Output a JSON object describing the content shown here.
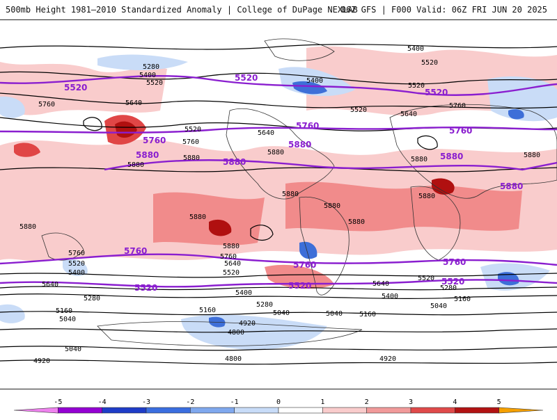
{
  "header": {
    "left_title": "500mb Height 1981–2010 Standardized Anomaly | College of DuPage NEXLAB",
    "right_title": "06Z GFS | F000 Valid: 06Z FRI JUN 20 2025"
  },
  "map": {
    "black_contour_labels": [
      "5400",
      "5280",
      "5400",
      "5520",
      "5520",
      "5640",
      "5760",
      "5520",
      "5640",
      "5760",
      "5880",
      "5880",
      "5880",
      "5880",
      "5880",
      "5880",
      "5880",
      "5880",
      "5880",
      "5400",
      "5520",
      "5520",
      "5640",
      "5760",
      "5880",
      "5880",
      "5880",
      "5760",
      "5520",
      "5400",
      "5640",
      "5280",
      "5160",
      "5040",
      "5040",
      "4920",
      "5160",
      "4920",
      "4800",
      "5040",
      "5280",
      "5400",
      "5520",
      "5760",
      "5640",
      "5160",
      "5040",
      "4920",
      "4800",
      "5280",
      "5400",
      "5520",
      "5640",
      "5160",
      "5040"
    ],
    "purple_contour_labels": [
      "5520",
      "5520",
      "5520",
      "5760",
      "5760",
      "5760",
      "5880",
      "5880",
      "5880",
      "5880",
      "5880",
      "5760",
      "5760",
      "5760",
      "5520",
      "5520",
      "5520"
    ],
    "colors": {
      "purple_line": "#8a1ecf",
      "pos1": "#f9cccc",
      "pos2": "#f18b8b",
      "pos3": "#e04646",
      "pos4": "#b01010",
      "neg1": "#c9dcf7",
      "neg2": "#8fb4ef",
      "neg3": "#3e6fd8"
    }
  },
  "legend": {
    "ticks": [
      "-5",
      "-4",
      "-3",
      "-2",
      "-1",
      "0",
      "1",
      "2",
      "3",
      "4",
      "5"
    ],
    "colors": [
      "#ee82ee",
      "#9400d3",
      "#1e3cc8",
      "#3a6ee0",
      "#7fa8ee",
      "#c8dcf8",
      "#ffffff",
      "#f9cccc",
      "#f19a9a",
      "#e04a4a",
      "#b21212",
      "#f5a000"
    ]
  }
}
